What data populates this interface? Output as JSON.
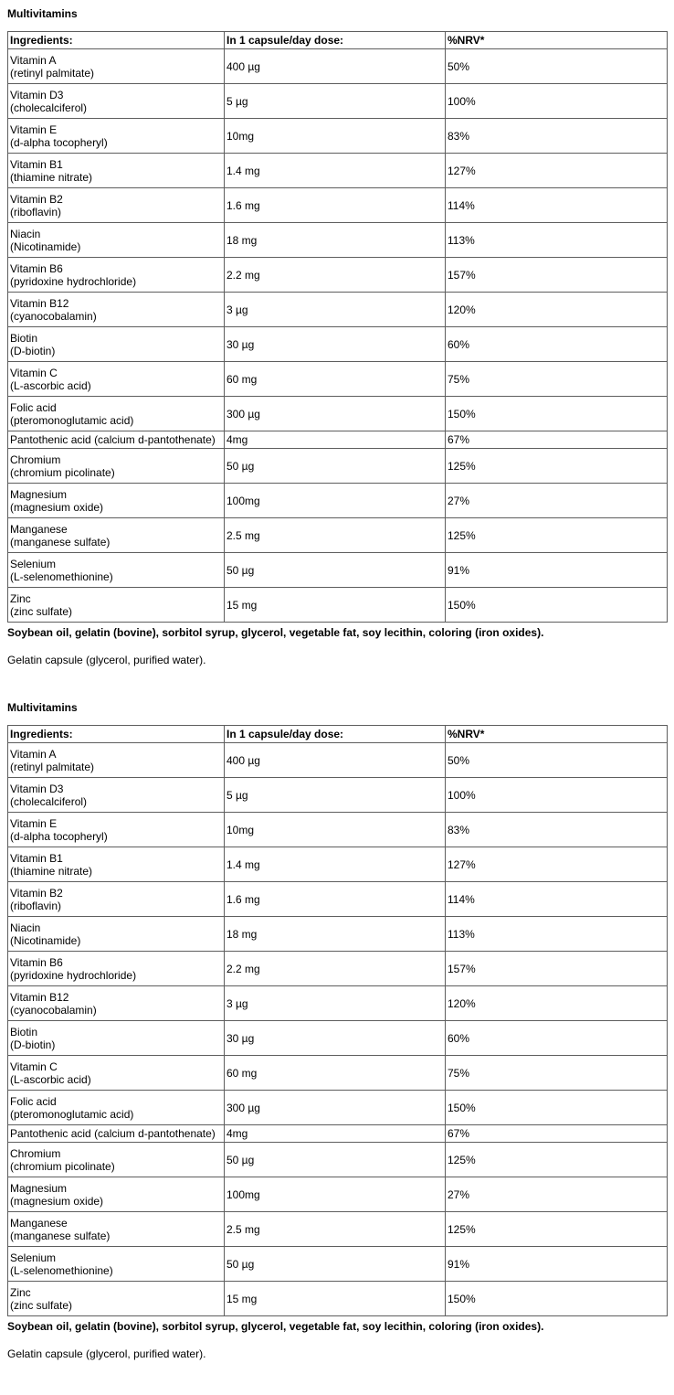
{
  "colors": {
    "text": "#000000",
    "table_border": "#5e5e5e",
    "background": "#ffffff"
  },
  "sections": [
    {
      "heading": "Multivitamins",
      "table": {
        "headers": [
          "Ingredients:",
          "In 1 capsule/day dose:",
          "%NRV*"
        ],
        "rows": [
          {
            "name": "Vitamin A",
            "form": "(retinyl palmitate)",
            "dose": "400 µg",
            "nrv": "50%"
          },
          {
            "name": "Vitamin D3",
            "form": "(cholecalciferol)",
            "dose": "5 µg",
            "nrv": "100%"
          },
          {
            "name": "Vitamin E",
            "form": "(d-alpha tocopheryl)",
            "dose": "10mg",
            "nrv": "83%"
          },
          {
            "name": "Vitamin B1",
            "form": "(thiamine nitrate)",
            "dose": "1.4 mg",
            "nrv": "127%"
          },
          {
            "name": "Vitamin B2",
            "form": "(riboflavin)",
            "dose": "1.6 mg",
            "nrv": "114%"
          },
          {
            "name": "Niacin",
            "form": "(Nicotinamide)",
            "dose": "18 mg",
            "nrv": "113%"
          },
          {
            "name": "Vitamin B6",
            "form": "(pyridoxine hydrochloride)",
            "dose": "2.2 mg",
            "nrv": "157%"
          },
          {
            "name": "Vitamin B12",
            "form": "(cyanocobalamin)",
            "dose": "3 µg",
            "nrv": "120%"
          },
          {
            "name": "Biotin",
            "form": "(D-biotin)",
            "dose": "30 µg",
            "nrv": "60%"
          },
          {
            "name": "Vitamin C",
            "form": "(L-ascorbic acid)",
            "dose": "60 mg",
            "nrv": "75%"
          },
          {
            "name": "Folic acid",
            "form": "(pteromonoglutamic acid)",
            "dose": "300 µg",
            "nrv": "150%"
          },
          {
            "name": "Pantothenic acid (calcium d-pantothenate)",
            "form": "",
            "dose": "4mg",
            "nrv": "67%"
          },
          {
            "name": "Chromium",
            "form": "(chromium picolinate)",
            "dose": "50 µg",
            "nrv": "125%"
          },
          {
            "name": "Magnesium",
            "form": "(magnesium oxide)",
            "dose": "100mg",
            "nrv": "27%"
          },
          {
            "name": "Manganese",
            "form": "(manganese sulfate)",
            "dose": "2.5 mg",
            "nrv": "125%"
          },
          {
            "name": "Selenium",
            "form": "(L-selenomethionine)",
            "dose": "50 µg",
            "nrv": "91%"
          },
          {
            "name": "Zinc",
            "form": "(zinc sulfate)",
            "dose": "15 mg",
            "nrv": "150%"
          }
        ]
      },
      "other_ingredients": "Soybean oil, gelatin (bovine), sorbitol syrup, glycerol, vegetable fat, soy lecithin, coloring (iron oxides).",
      "capsule_note": "Gelatin capsule (glycerol, purified water)."
    },
    {
      "heading": "Multivitamins",
      "table": {
        "headers": [
          "Ingredients:",
          "In 1 capsule/day dose:",
          "%NRV*"
        ],
        "rows": [
          {
            "name": "Vitamin A",
            "form": "(retinyl palmitate)",
            "dose": "400 µg",
            "nrv": "50%"
          },
          {
            "name": "Vitamin D3",
            "form": "(cholecalciferol)",
            "dose": "5 µg",
            "nrv": "100%"
          },
          {
            "name": "Vitamin E",
            "form": "(d-alpha tocopheryl)",
            "dose": "10mg",
            "nrv": "83%"
          },
          {
            "name": "Vitamin B1",
            "form": "(thiamine nitrate)",
            "dose": "1.4 mg",
            "nrv": "127%"
          },
          {
            "name": "Vitamin B2",
            "form": "(riboflavin)",
            "dose": "1.6 mg",
            "nrv": "114%"
          },
          {
            "name": "Niacin",
            "form": "(Nicotinamide)",
            "dose": "18 mg",
            "nrv": "113%"
          },
          {
            "name": "Vitamin B6",
            "form": "(pyridoxine hydrochloride)",
            "dose": "2.2 mg",
            "nrv": "157%"
          },
          {
            "name": "Vitamin B12",
            "form": "(cyanocobalamin)",
            "dose": "3 µg",
            "nrv": "120%"
          },
          {
            "name": "Biotin",
            "form": "(D-biotin)",
            "dose": "30 µg",
            "nrv": "60%"
          },
          {
            "name": "Vitamin C",
            "form": "(L-ascorbic acid)",
            "dose": "60 mg",
            "nrv": "75%"
          },
          {
            "name": "Folic acid",
            "form": "(pteromonoglutamic acid)",
            "dose": "300 µg",
            "nrv": "150%"
          },
          {
            "name": "Pantothenic acid (calcium d-pantothenate)",
            "form": "",
            "dose": "4mg",
            "nrv": "67%"
          },
          {
            "name": "Chromium",
            "form": "(chromium picolinate)",
            "dose": "50 µg",
            "nrv": "125%"
          },
          {
            "name": "Magnesium",
            "form": "(magnesium oxide)",
            "dose": "100mg",
            "nrv": "27%"
          },
          {
            "name": "Manganese",
            "form": "(manganese sulfate)",
            "dose": "2.5 mg",
            "nrv": "125%"
          },
          {
            "name": "Selenium",
            "form": "(L-selenomethionine)",
            "dose": "50 µg",
            "nrv": "91%"
          },
          {
            "name": "Zinc",
            "form": "(zinc sulfate)",
            "dose": "15 mg",
            "nrv": "150%"
          }
        ]
      },
      "other_ingredients": "Soybean oil, gelatin (bovine), sorbitol syrup, glycerol, vegetable fat, soy lecithin, coloring (iron oxides).",
      "capsule_note": "Gelatin capsule (glycerol, purified water)."
    }
  ]
}
